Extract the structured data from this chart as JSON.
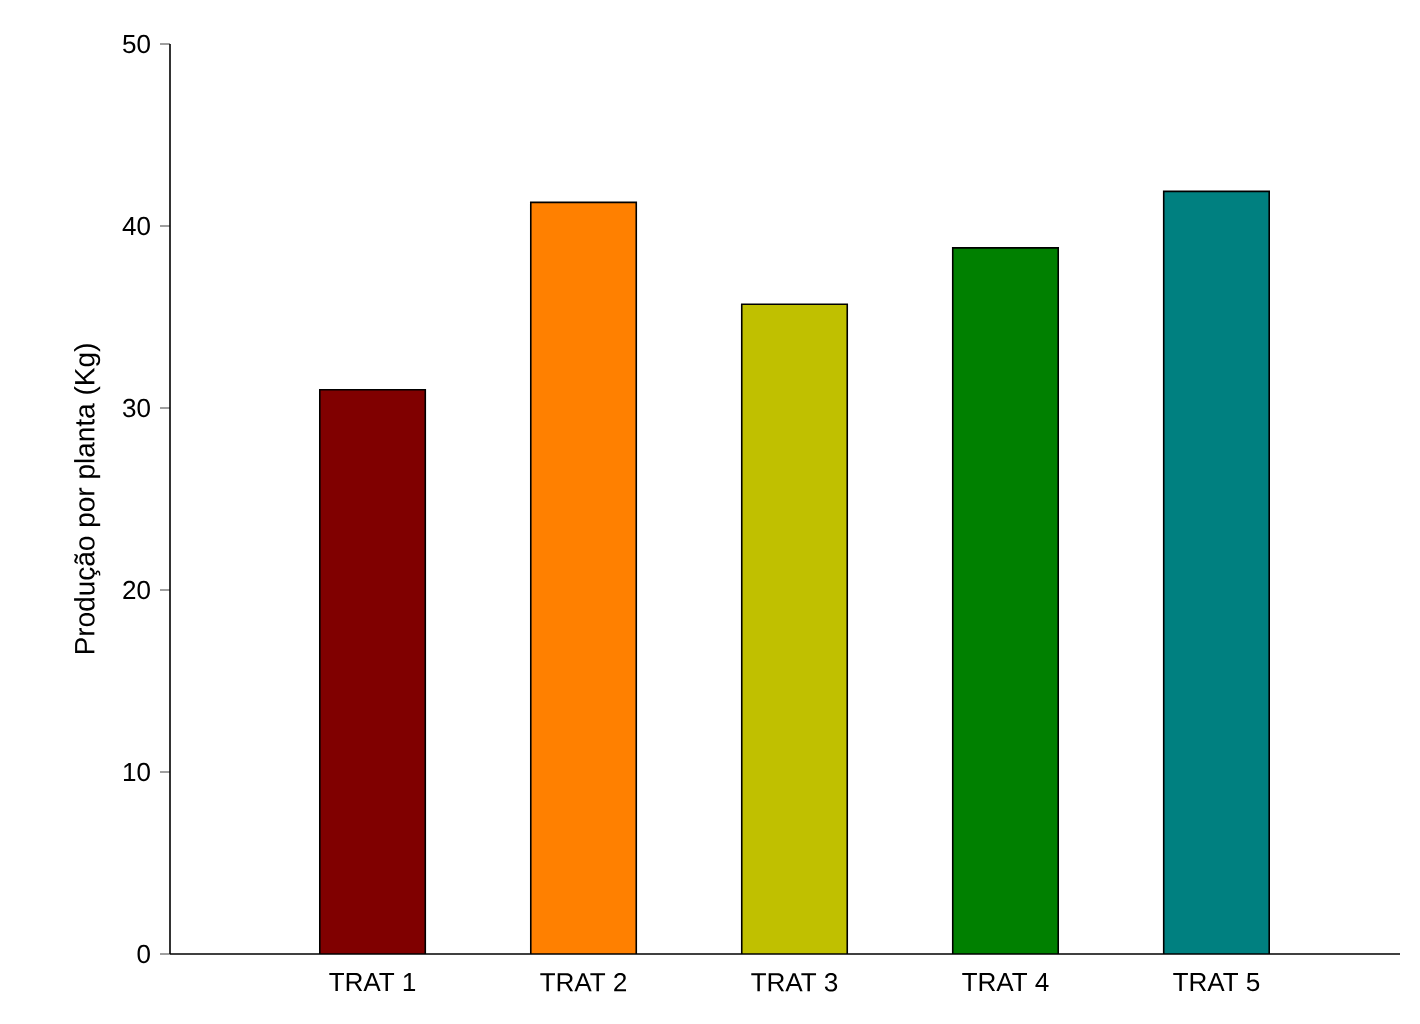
{
  "chart_data": {
    "type": "bar",
    "ylabel": "Produção por planta (Kg)",
    "categories": [
      "TRAT 1",
      "TRAT 2",
      "TRAT 3",
      "TRAT 4",
      "TRAT 5"
    ],
    "values": [
      31.0,
      41.3,
      35.7,
      38.8,
      41.9
    ],
    "colors": [
      "#800000",
      "#ff8000",
      "#c0c000",
      "#008000",
      "#008080"
    ],
    "ylim": [
      0,
      50
    ],
    "yticks": [
      0,
      10,
      20,
      30,
      40,
      50
    ],
    "grid": false
  }
}
